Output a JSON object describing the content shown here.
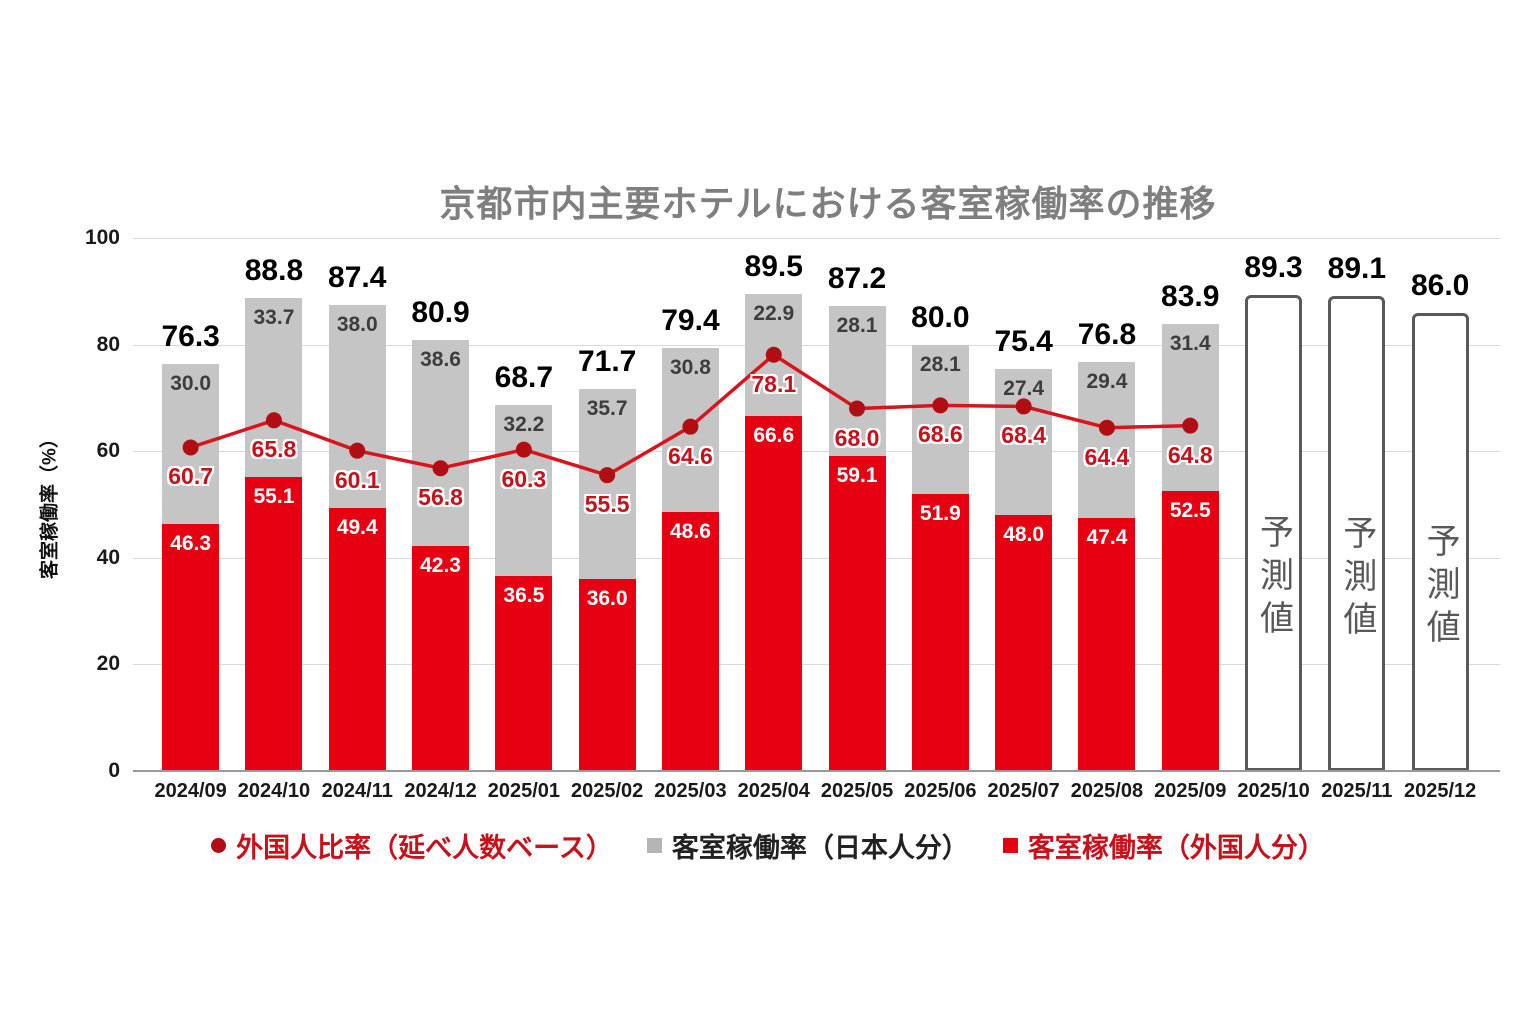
{
  "chart_data": {
    "type": "bar",
    "subtype": "stacked-bars-with-line-overlay-and-forecast",
    "title": "京都市内主要ホテルにおける客室稼働率の推移",
    "ylabel": "客室稼働率（%）",
    "xlabel": "",
    "ylim": [
      0,
      100
    ],
    "yticks": [
      0,
      20,
      40,
      60,
      80,
      100
    ],
    "grid": true,
    "legend_position": "bottom",
    "categories": [
      "2024/09",
      "2024/10",
      "2024/11",
      "2024/12",
      "2025/01",
      "2025/02",
      "2025/03",
      "2025/04",
      "2025/05",
      "2025/06",
      "2025/07",
      "2025/08",
      "2025/09",
      "2025/10",
      "2025/11",
      "2025/12"
    ],
    "series": [
      {
        "name": "客室稼働率（外国人分）",
        "type": "bar",
        "stack_order": 0,
        "color": "#e60012",
        "value_label_color": "#ffffff",
        "values": [
          46.3,
          55.1,
          49.4,
          42.3,
          36.5,
          36.0,
          48.6,
          66.6,
          59.1,
          51.9,
          48.0,
          47.4,
          52.5,
          null,
          null,
          null
        ]
      },
      {
        "name": "客室稼働率（日本人分）",
        "type": "bar",
        "stack_order": 1,
        "color": "#c5c5c5",
        "value_label_color": "#3d3d3d",
        "values": [
          30.0,
          33.7,
          38.0,
          38.6,
          32.2,
          35.7,
          30.8,
          22.9,
          28.1,
          28.1,
          27.4,
          29.4,
          31.4,
          null,
          null,
          null
        ]
      },
      {
        "name": "外国人比率（延べ人数ベース）",
        "type": "line",
        "color": "#d8141c",
        "marker_color": "#b00e12",
        "value_label_color": "#c8111a",
        "values": [
          60.7,
          65.8,
          60.1,
          56.8,
          60.3,
          55.5,
          64.6,
          78.1,
          68.0,
          68.6,
          68.4,
          64.4,
          64.8,
          null,
          null,
          null
        ]
      }
    ],
    "stack_totals": [
      76.3,
      88.8,
      87.4,
      80.9,
      68.7,
      71.7,
      79.4,
      89.5,
      87.2,
      80.0,
      75.4,
      76.8,
      83.9,
      89.3,
      89.1,
      86.0
    ],
    "forecast": {
      "indices": [
        13,
        14,
        15
      ],
      "bar_label": "予測値",
      "border_color": "#595959",
      "text_color": "#595959"
    },
    "colors": {
      "title": "#7f7f7f",
      "total_label": "#000000",
      "grid": "#d9d9d9",
      "axis": "#999999",
      "tick_label": "#1a1a1a",
      "legend_dark_text": "#222222",
      "legend_red_text": "#c8111a",
      "legend_gray_marker": "#b5b5b5",
      "legend_red_marker": "#e60012"
    }
  }
}
